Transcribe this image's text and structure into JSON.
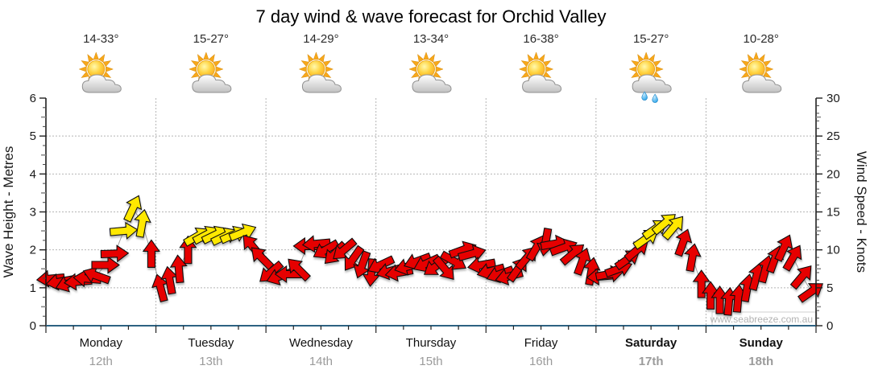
{
  "watermark": "www.seabreeze.com.au",
  "colors": {
    "arrow_red": "#e60000",
    "arrow_yellow": "#ffe800",
    "axis_line_bottom": "#2d6282",
    "axis_line_side": "#111111",
    "grid": "#b5b5b5",
    "trend_line": "#9e9e9e",
    "date_text": "#9b9b9b",
    "watermark_text": "#b3b3b3"
  },
  "chart_data": {
    "type": "wind_arrow_timeseries",
    "title": "7 day wind & wave forecast for Orchid Valley",
    "ylabel_left": "Wave Height - Metres",
    "ylabel_right": "Wind Speed - Knots",
    "y_left": {
      "min": 0,
      "max": 6,
      "tick_step": 1
    },
    "y_right": {
      "min": 0,
      "max": 30,
      "tick_step": 5
    },
    "slots_per_day": 12,
    "arrow_value_unit": "knots (right axis)",
    "arrow_rot": "degrees clockwise, 0 = pointing up",
    "grid": "dotted horizontal line every 5 knots, dotted vertical line at each day boundary",
    "legend": "red arrow = lighter wind, yellow arrow = stronger wind",
    "days": [
      {
        "name": "Monday",
        "date": "12th",
        "temp": "14-33°",
        "icon": "partly-cloudy",
        "weekend": false,
        "arrows": [
          [
            6.2,
            265,
            "r"
          ],
          [
            5.8,
            260,
            "r"
          ],
          [
            5.6,
            250,
            "r"
          ],
          [
            5.8,
            265,
            "r"
          ],
          [
            6.2,
            275,
            "r"
          ],
          [
            6.6,
            290,
            "r"
          ],
          [
            8,
            90,
            "r"
          ],
          [
            9.5,
            88,
            "r"
          ],
          [
            12.5,
            85,
            "y"
          ],
          [
            15.5,
            25,
            "y"
          ],
          [
            13.5,
            10,
            "y"
          ],
          [
            9.5,
            0,
            "r"
          ]
        ]
      },
      {
        "name": "Tuesday",
        "date": "13th",
        "temp": "15-27°",
        "icon": "partly-cloudy",
        "weekend": false,
        "arrows": [
          [
            5,
            345,
            "r"
          ],
          [
            6,
            350,
            "r"
          ],
          [
            7.5,
            355,
            "r"
          ],
          [
            10,
            0,
            "r"
          ],
          [
            11.8,
            60,
            "y"
          ],
          [
            12,
            62,
            "y"
          ],
          [
            12,
            64,
            "y"
          ],
          [
            11.8,
            64,
            "y"
          ],
          [
            12,
            66,
            "y"
          ],
          [
            12.3,
            68,
            "y"
          ],
          [
            10.5,
            320,
            "r"
          ],
          [
            9,
            315,
            "r"
          ]
        ]
      },
      {
        "name": "Wednesday",
        "date": "14th",
        "temp": "14-29°",
        "icon": "partly-cloudy",
        "weekend": false,
        "arrows": [
          [
            7,
            230,
            "r"
          ],
          [
            6.5,
            250,
            "r"
          ],
          [
            6.8,
            270,
            "r"
          ],
          [
            7.5,
            315,
            "r"
          ],
          [
            10.5,
            270,
            "r"
          ],
          [
            10.8,
            265,
            "r"
          ],
          [
            10,
            240,
            "r"
          ],
          [
            9.5,
            225,
            "r"
          ],
          [
            10,
            230,
            "r"
          ],
          [
            8.8,
            215,
            "r"
          ],
          [
            8,
            200,
            "r"
          ],
          [
            7,
            185,
            "r"
          ]
        ]
      },
      {
        "name": "Thursday",
        "date": "15th",
        "temp": "13-34°",
        "icon": "partly-cloudy",
        "weekend": false,
        "arrows": [
          [
            8,
            245,
            "r"
          ],
          [
            7.2,
            255,
            "r"
          ],
          [
            7,
            260,
            "r"
          ],
          [
            7.8,
            255,
            "r"
          ],
          [
            8.5,
            250,
            "r"
          ],
          [
            8.2,
            245,
            "r"
          ],
          [
            7.8,
            235,
            "r"
          ],
          [
            7.5,
            140,
            "r"
          ],
          [
            8.5,
            120,
            "r"
          ],
          [
            10,
            70,
            "r"
          ],
          [
            9.5,
            75,
            "r"
          ],
          [
            8,
            260,
            "r"
          ]
        ]
      },
      {
        "name": "Friday",
        "date": "16th",
        "temp": "16-38°",
        "icon": "partly-cloudy",
        "weekend": false,
        "arrows": [
          [
            7.2,
            255,
            "r"
          ],
          [
            6.8,
            250,
            "r"
          ],
          [
            6.5,
            255,
            "r"
          ],
          [
            7.5,
            35,
            "r"
          ],
          [
            9,
            40,
            "r"
          ],
          [
            10.3,
            30,
            "r"
          ],
          [
            11,
            190,
            "r"
          ],
          [
            10.8,
            80,
            "r"
          ],
          [
            10.3,
            70,
            "r"
          ],
          [
            9.5,
            50,
            "r"
          ],
          [
            8.5,
            20,
            "r"
          ],
          [
            7.2,
            10,
            "r"
          ]
        ]
      },
      {
        "name": "Saturday",
        "date": "17th",
        "temp": "15-27°",
        "icon": "partly-cloudy-showers",
        "weekend": true,
        "arrows": [
          [
            6.5,
            265,
            "r"
          ],
          [
            6.8,
            80,
            "r"
          ],
          [
            7.5,
            70,
            "r"
          ],
          [
            8.8,
            55,
            "r"
          ],
          [
            10,
            50,
            "r"
          ],
          [
            11.5,
            55,
            "y"
          ],
          [
            12.8,
            55,
            "y"
          ],
          [
            13.5,
            50,
            "y"
          ],
          [
            13,
            40,
            "y"
          ],
          [
            11,
            20,
            "r"
          ],
          [
            9,
            10,
            "r"
          ],
          [
            5.5,
            0,
            "r"
          ]
        ]
      },
      {
        "name": "Sunday",
        "date": "18th",
        "temp": "10-28°",
        "icon": "partly-cloudy",
        "weekend": true,
        "arrows": [
          [
            4,
            0,
            "r"
          ],
          [
            3.4,
            0,
            "r"
          ],
          [
            3.2,
            5,
            "r"
          ],
          [
            3.6,
            5,
            "r"
          ],
          [
            5,
            10,
            "r"
          ],
          [
            6.5,
            15,
            "r"
          ],
          [
            7.5,
            15,
            "r"
          ],
          [
            8.8,
            20,
            "r"
          ],
          [
            10.3,
            25,
            "r"
          ],
          [
            9,
            30,
            "r"
          ],
          [
            6.5,
            40,
            "r"
          ],
          [
            4.5,
            55,
            "r"
          ]
        ]
      }
    ]
  }
}
